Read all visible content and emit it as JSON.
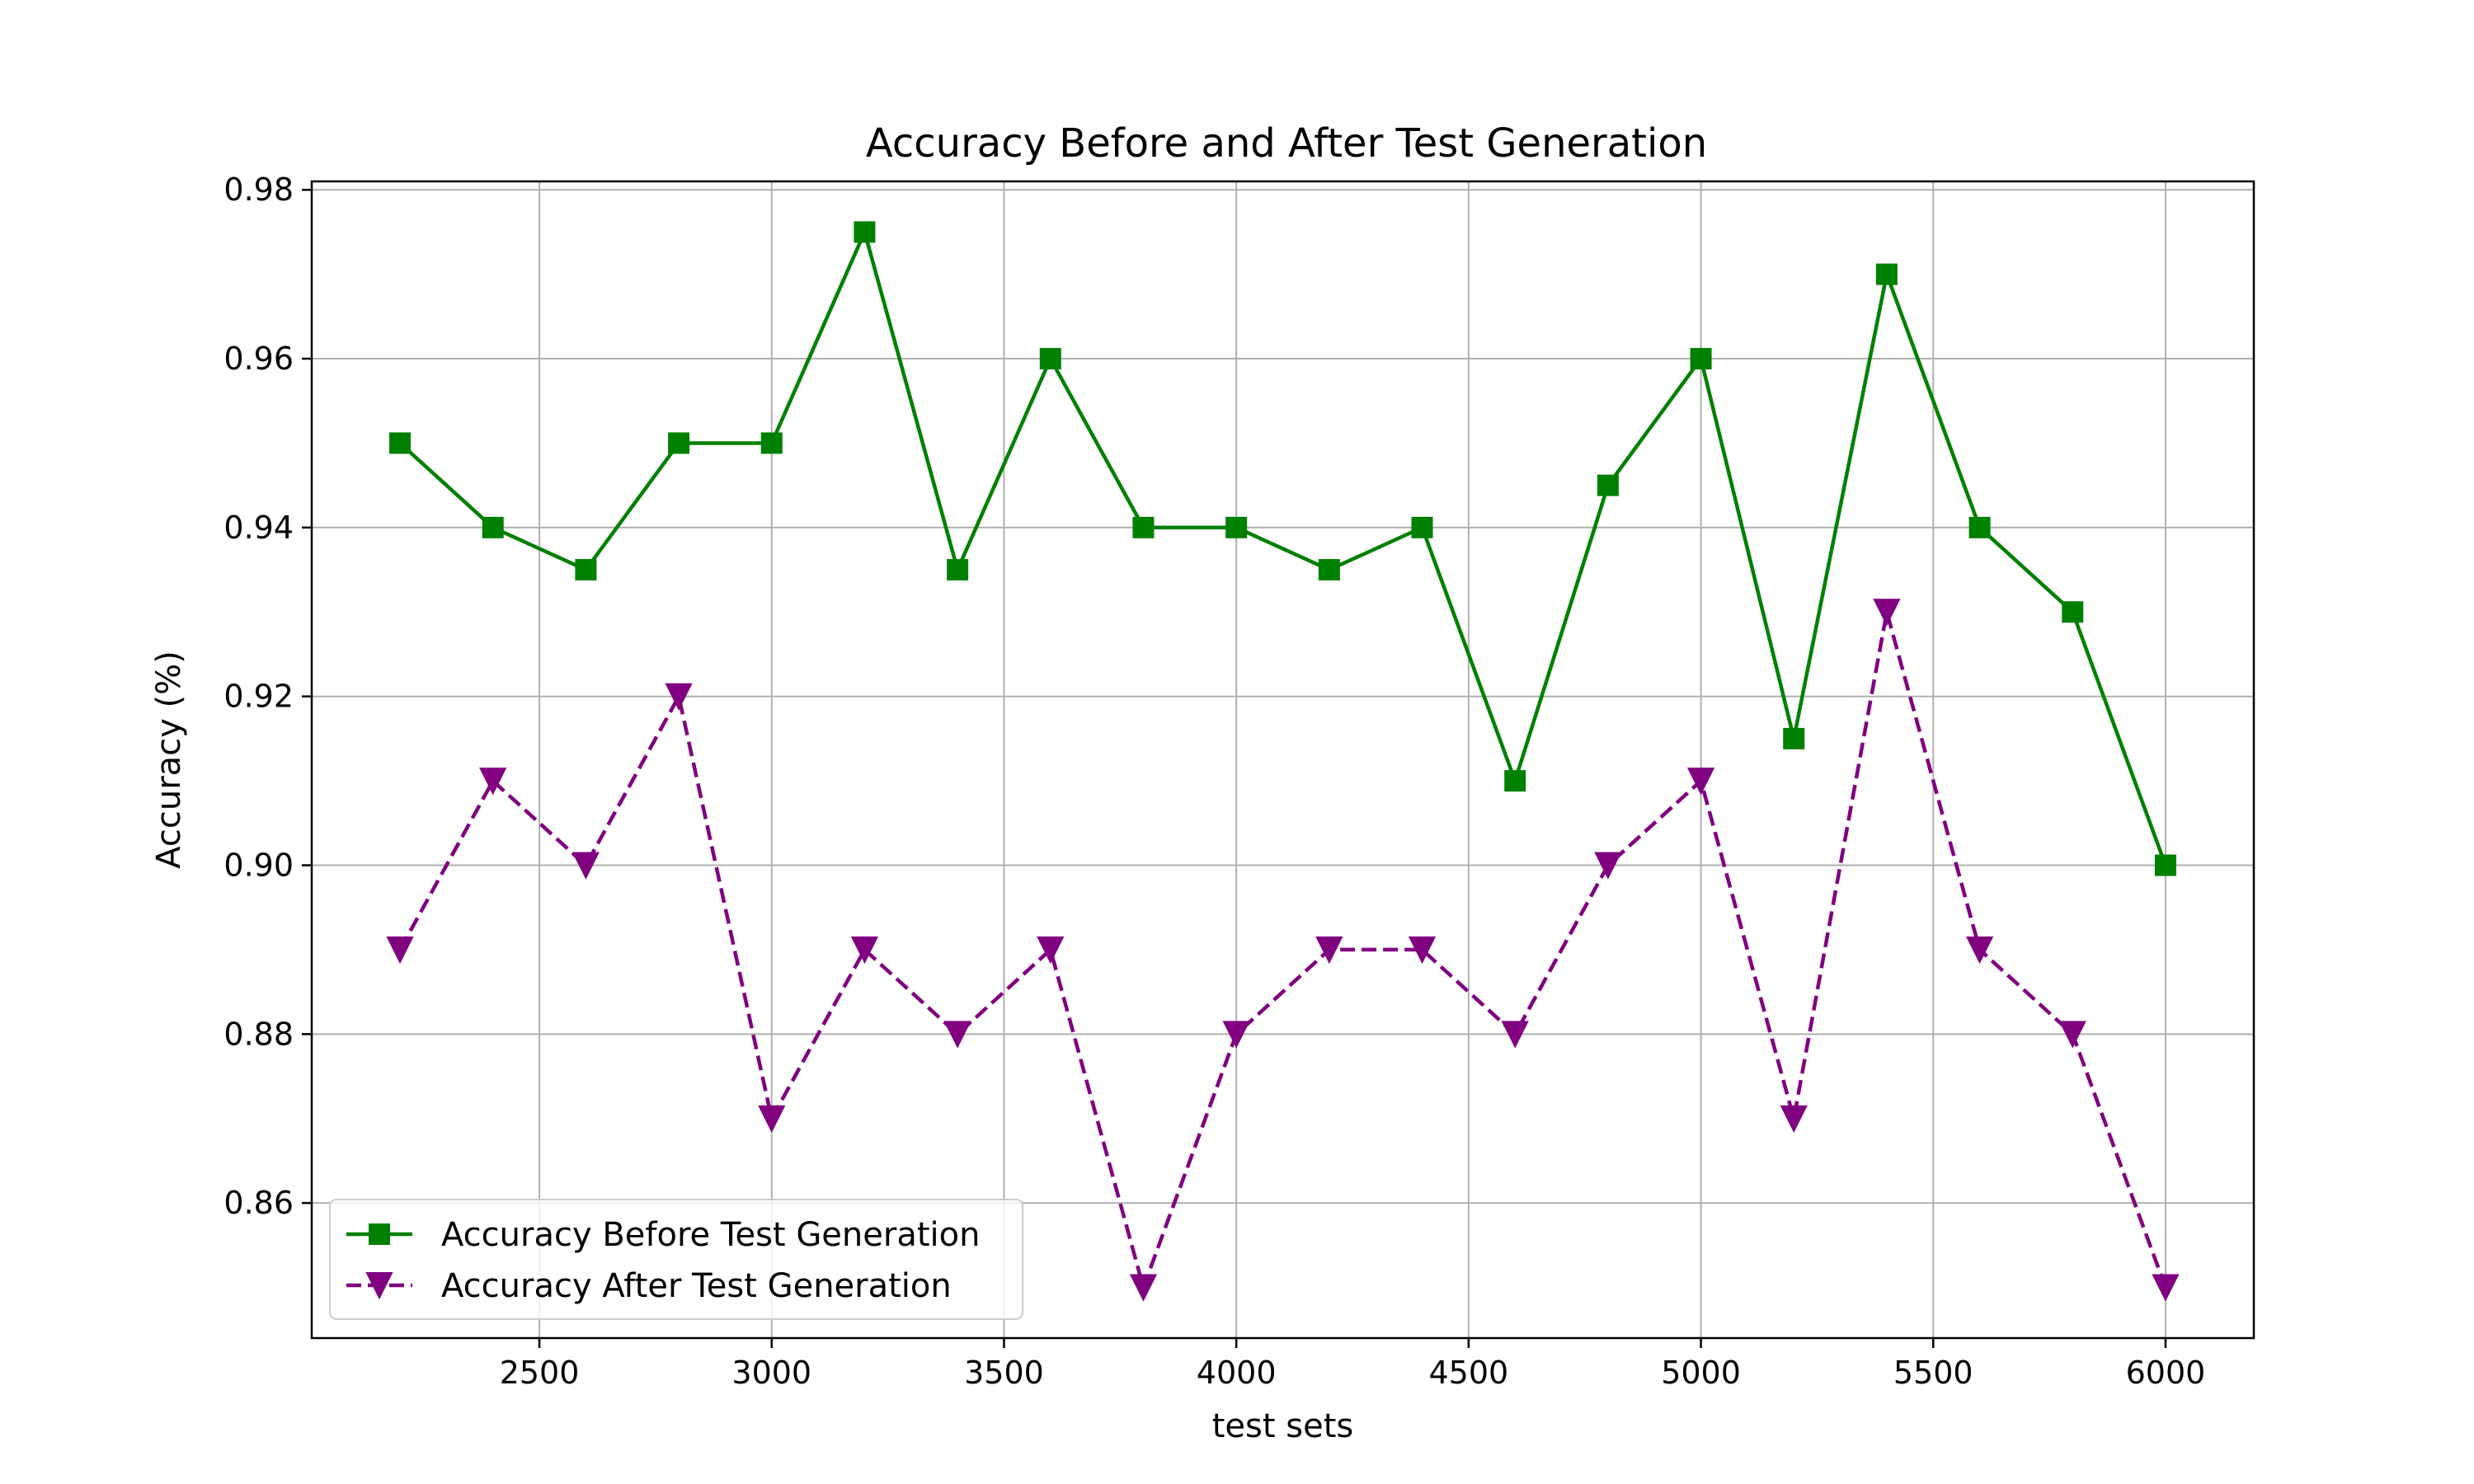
{
  "chart_data": {
    "type": "line",
    "title": "Accuracy Before and After Test Generation",
    "xlabel": "test sets",
    "ylabel": "Accuracy (%)",
    "xlim": [
      2010,
      6190
    ],
    "ylim": [
      0.844,
      0.981
    ],
    "xticks": [
      2500,
      3000,
      3500,
      4000,
      4500,
      5000,
      5500,
      6000
    ],
    "yticks": [
      0.86,
      0.88,
      0.9,
      0.92,
      0.94,
      0.96,
      0.98
    ],
    "ytick_decimals": 2,
    "grid": true,
    "legend_position": "lower-left",
    "x": [
      2200,
      2400,
      2600,
      2800,
      3000,
      3200,
      3400,
      3600,
      3800,
      4000,
      4200,
      4400,
      4600,
      4800,
      5000,
      5200,
      5400,
      5600,
      5800,
      6000
    ],
    "series": [
      {
        "name": "Accuracy Before Test Generation",
        "color": "#008000",
        "marker": "square",
        "dash": "solid",
        "values": [
          0.95,
          0.94,
          0.935,
          0.95,
          0.95,
          0.975,
          0.935,
          0.96,
          0.94,
          0.94,
          0.935,
          0.94,
          0.91,
          0.945,
          0.96,
          0.915,
          0.97,
          0.94,
          0.93,
          0.9
        ]
      },
      {
        "name": "Accuracy After Test Generation",
        "color": "#800080",
        "marker": "triangle-down",
        "dash": "dashed",
        "values": [
          0.89,
          0.91,
          0.9,
          0.92,
          0.87,
          0.89,
          0.88,
          0.89,
          0.85,
          0.88,
          0.89,
          0.89,
          0.88,
          0.9,
          0.91,
          0.87,
          0.93,
          0.89,
          0.88,
          0.85
        ]
      }
    ]
  }
}
